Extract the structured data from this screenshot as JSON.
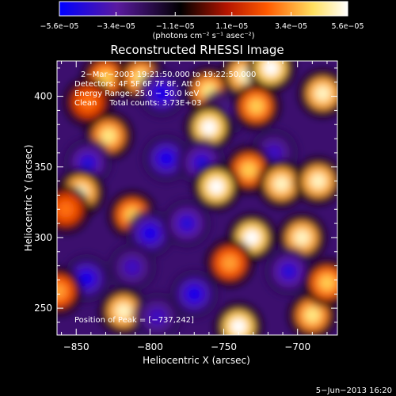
{
  "chart_data": {
    "type": "heatmap",
    "title": "Reconstructed RHESSI Image",
    "xlabel": "Heliocentric X (arcsec)",
    "ylabel": "Heliocentric Y (arcsec)",
    "xlim": [
      -863,
      -673
    ],
    "ylim": [
      231,
      425
    ],
    "x_ticks": [
      -850,
      -800,
      -750,
      -700
    ],
    "x_tick_labels": [
      "−850",
      "−800",
      "−750",
      "−700"
    ],
    "y_ticks": [
      250,
      300,
      350,
      400
    ],
    "y_tick_labels": [
      "250",
      "300",
      "350",
      "400"
    ],
    "colorbar": {
      "min": -5.6e-05,
      "max": 5.6e-05,
      "ticks": [
        -5.6e-05,
        -3.4e-05,
        -1.1e-05,
        1.1e-05,
        3.4e-05,
        5.6e-05
      ],
      "tick_labels": [
        "−5.6e−05",
        "−3.4e−05",
        "−1.1e−05",
        "1.1e−05",
        "3.4e−05",
        "5.6e−05"
      ],
      "unit_label": "(photons cm⁻² s⁻¹ asec⁻²)",
      "colors": [
        "#0000ff",
        "#5a1aa0",
        "#000000",
        "#b41400",
        "#ff5a00",
        "#ffe060",
        "#ffffff"
      ]
    },
    "annotations": {
      "date": "2−Mar−2003 19:21:50.000 to 19:22:50.000",
      "detectors": "Detectors: 4F 5F 6F 7F 8F, Att 0",
      "energy": "Energy Range: 25.0 − 50.0 keV",
      "clean": "Clean     Total counts: 3.73E+03",
      "peak": "Position of Peak = [−737,242]"
    },
    "footer": "5−Jun−2013 16:20",
    "blobs": [
      {
        "x": -830,
        "y": 413,
        "v": 0.7
      },
      {
        "x": -806,
        "y": 413,
        "v": 0.8
      },
      {
        "x": -760,
        "y": 404,
        "v": 0.8
      },
      {
        "x": -736,
        "y": 415,
        "v": 0.9
      },
      {
        "x": -718,
        "y": 420,
        "v": 1.0
      },
      {
        "x": -842,
        "y": 396,
        "v": 0.5
      },
      {
        "x": -792,
        "y": 402,
        "v": -0.9
      },
      {
        "x": -750,
        "y": 388,
        "v": -0.6
      },
      {
        "x": -760,
        "y": 378,
        "v": 1.0
      },
      {
        "x": -728,
        "y": 393,
        "v": 0.7
      },
      {
        "x": -716,
        "y": 360,
        "v": -0.7
      },
      {
        "x": -733,
        "y": 348,
        "v": 0.7
      },
      {
        "x": -711,
        "y": 338,
        "v": 0.9
      },
      {
        "x": -686,
        "y": 340,
        "v": 0.9
      },
      {
        "x": -683,
        "y": 402,
        "v": 0.9
      },
      {
        "x": -828,
        "y": 372,
        "v": 0.8
      },
      {
        "x": -842,
        "y": 353,
        "v": -0.8
      },
      {
        "x": -789,
        "y": 356,
        "v": -0.9
      },
      {
        "x": -765,
        "y": 353,
        "v": -0.8
      },
      {
        "x": -755,
        "y": 336,
        "v": 1.0
      },
      {
        "x": -847,
        "y": 332,
        "v": 0.9
      },
      {
        "x": -812,
        "y": 316,
        "v": 0.7
      },
      {
        "x": -857,
        "y": 320,
        "v": 0.5
      },
      {
        "x": -800,
        "y": 303,
        "v": -0.9
      },
      {
        "x": -775,
        "y": 310,
        "v": -0.8
      },
      {
        "x": -731,
        "y": 300,
        "v": 1.0
      },
      {
        "x": -697,
        "y": 300,
        "v": 0.9
      },
      {
        "x": -706,
        "y": 276,
        "v": -0.8
      },
      {
        "x": -843,
        "y": 271,
        "v": -0.9
      },
      {
        "x": -812,
        "y": 279,
        "v": -0.7
      },
      {
        "x": -770,
        "y": 260,
        "v": -0.9
      },
      {
        "x": -818,
        "y": 248,
        "v": 0.9
      },
      {
        "x": -746,
        "y": 282,
        "v": 0.6
      },
      {
        "x": -740,
        "y": 237,
        "v": 1.0
      },
      {
        "x": -690,
        "y": 245,
        "v": 0.8
      },
      {
        "x": -862,
        "y": 262,
        "v": 0.6
      },
      {
        "x": -795,
        "y": 244,
        "v": -0.7
      },
      {
        "x": -680,
        "y": 268,
        "v": 0.7
      }
    ]
  }
}
